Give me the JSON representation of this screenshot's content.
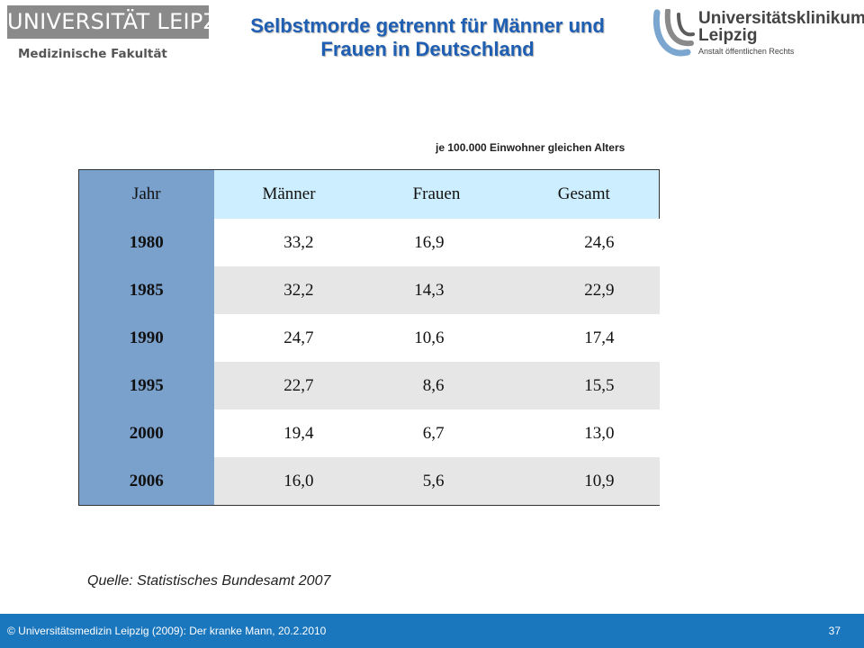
{
  "header": {
    "university_logo_text": "UNIVERSITÄT LEIPZIG",
    "faculty": "Medizinische Fakultät",
    "title_line1": "Selbstmorde getrennt für Männer und",
    "title_line2": "Frauen in Deutschland",
    "clinic_logo_line1": "Universitätsklinikum",
    "clinic_logo_line2": "Leipzig",
    "clinic_logo_line3": "Anstalt öffentlichen Rechts"
  },
  "table": {
    "unit_note": "je 100.000 Einwohner gleichen Alters",
    "headers": [
      "Jahr",
      "Männer",
      "Frauen",
      "Gesamt"
    ],
    "rows": [
      [
        "1980",
        "33,2",
        "16,9",
        "24,6"
      ],
      [
        "1985",
        "32,2",
        "14,3",
        "22,9"
      ],
      [
        "1990",
        "24,7",
        "10,6",
        "17,4"
      ],
      [
        "1995",
        "22,7",
        "8,6",
        "15,5"
      ],
      [
        "2000",
        "19,4",
        "6,7",
        "13,0"
      ],
      [
        "2006",
        "16,0",
        "5,6",
        "10,9"
      ]
    ]
  },
  "source": "Quelle: Statistisches Bundesamt 2007",
  "footer": {
    "copyright": "© Universitätsmedizin Leipzig (2009): Der kranke Mann, 20.2.2010",
    "page_number": "37"
  },
  "colors": {
    "title": "#1f5fb3",
    "year_column": "#7aa0cc",
    "header_row": "#cdeefe",
    "stripe": "#e6e6e6",
    "footer_bar": "#1a76bd",
    "logo_box": "#8a8a8a"
  }
}
